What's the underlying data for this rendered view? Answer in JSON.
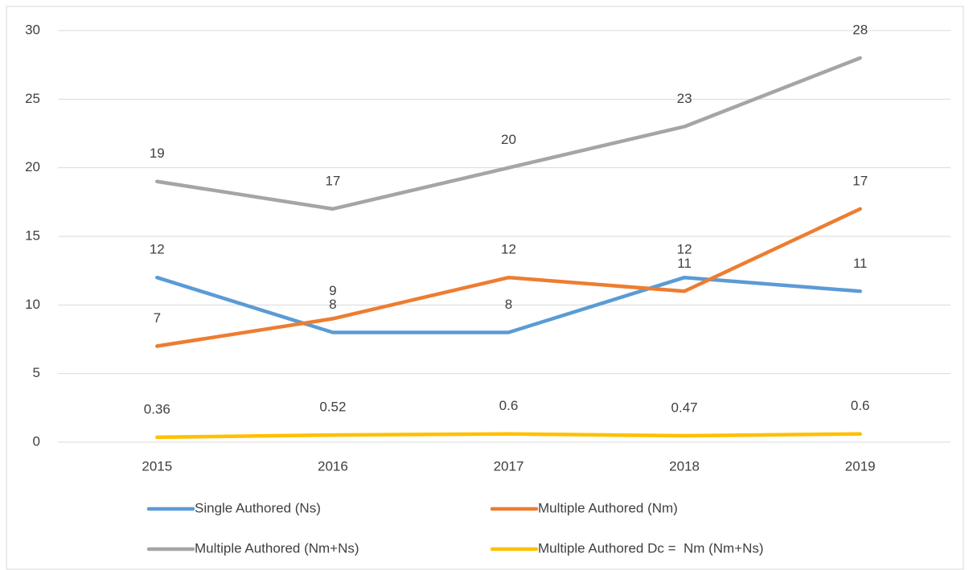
{
  "chart_data": {
    "type": "line",
    "categories": [
      "2015",
      "2016",
      "2017",
      "2018",
      "2019"
    ],
    "series": [
      {
        "name": "Single Authored (Ns)",
        "color": "#5b9bd5",
        "values": [
          12,
          8,
          8,
          12,
          11
        ]
      },
      {
        "name": "Multiple Authored (Nm)",
        "color": "#ed7d31",
        "values": [
          7,
          9,
          12,
          11,
          17
        ]
      },
      {
        "name": "Multiple Authored (Nm+Ns)",
        "color": "#a5a5a5",
        "values": [
          19,
          17,
          20,
          23,
          28
        ]
      },
      {
        "name": "Multiple Authored Dc =  Nm (Nm+Ns)",
        "color": "#ffc000",
        "values": [
          0.36,
          0.52,
          0.6,
          0.47,
          0.6
        ]
      }
    ],
    "ylim": [
      0,
      30
    ],
    "yticks": [
      0,
      5,
      10,
      15,
      20,
      25,
      30
    ],
    "grid": true,
    "legend": "bottom"
  }
}
